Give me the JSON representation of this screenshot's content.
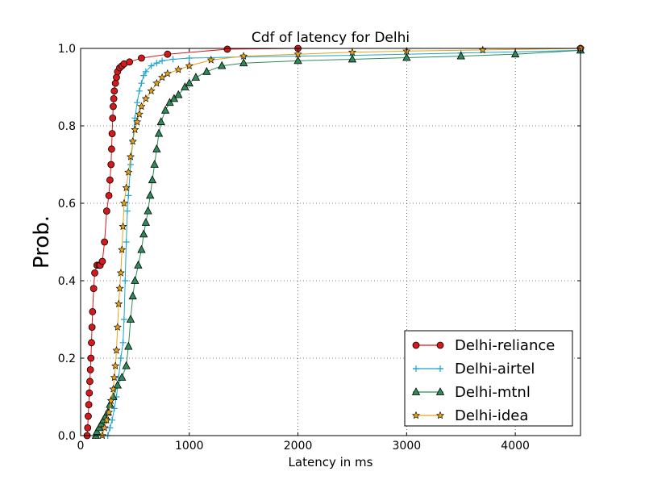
{
  "chart_data": {
    "type": "line",
    "title": "Cdf of latency for Delhi",
    "xlabel": "Latency in ms",
    "ylabel": "Prob.",
    "xlim": [
      0,
      4600
    ],
    "ylim": [
      0,
      1.0
    ],
    "xticks": [
      0,
      1000,
      2000,
      3000,
      4000
    ],
    "yticks": [
      0.0,
      0.2,
      0.4,
      0.6,
      0.8,
      1.0
    ],
    "xtick_labels": [
      "0",
      "1000",
      "2000",
      "3000",
      "4000"
    ],
    "ytick_labels": [
      "0.0",
      "0.2",
      "0.4",
      "0.6",
      "0.8",
      "1.0"
    ],
    "grid": true,
    "legend_position": "lower-right",
    "series": [
      {
        "name": "Delhi-reliance",
        "color": "#d7191c",
        "marker": "circle",
        "x": [
          60,
          65,
          70,
          75,
          80,
          85,
          90,
          95,
          100,
          105,
          110,
          120,
          130,
          150,
          170,
          180,
          200,
          220,
          240,
          260,
          270,
          280,
          285,
          290,
          295,
          300,
          305,
          310,
          320,
          330,
          340,
          360,
          380,
          400,
          450,
          560,
          800,
          1350,
          2000,
          4600
        ],
        "y": [
          0.0,
          0.02,
          0.05,
          0.08,
          0.11,
          0.14,
          0.17,
          0.2,
          0.24,
          0.28,
          0.32,
          0.38,
          0.42,
          0.44,
          0.44,
          0.44,
          0.45,
          0.5,
          0.58,
          0.62,
          0.66,
          0.7,
          0.74,
          0.78,
          0.82,
          0.85,
          0.87,
          0.89,
          0.91,
          0.925,
          0.94,
          0.95,
          0.955,
          0.96,
          0.965,
          0.975,
          0.985,
          0.998,
          1.0,
          1.0
        ]
      },
      {
        "name": "Delhi-airtel",
        "color": "#1aa5cf",
        "marker": "plus",
        "x": [
          250,
          270,
          290,
          310,
          330,
          350,
          370,
          390,
          400,
          410,
          420,
          430,
          440,
          460,
          480,
          500,
          520,
          540,
          560,
          580,
          600,
          650,
          700,
          750,
          850,
          1000,
          1500,
          2500,
          3500,
          4600
        ],
        "y": [
          0.0,
          0.02,
          0.04,
          0.07,
          0.1,
          0.15,
          0.2,
          0.24,
          0.3,
          0.4,
          0.5,
          0.58,
          0.62,
          0.7,
          0.76,
          0.82,
          0.86,
          0.89,
          0.91,
          0.93,
          0.94,
          0.955,
          0.962,
          0.968,
          0.972,
          0.975,
          0.978,
          0.982,
          0.988,
          0.995
        ]
      },
      {
        "name": "Delhi-mtnl",
        "color": "#2e8b57",
        "marker": "triangle",
        "x": [
          140,
          150,
          170,
          190,
          210,
          230,
          250,
          270,
          300,
          340,
          380,
          420,
          440,
          460,
          480,
          500,
          530,
          560,
          580,
          600,
          620,
          640,
          660,
          680,
          700,
          720,
          740,
          780,
          820,
          860,
          900,
          960,
          1000,
          1060,
          1160,
          1300,
          1500,
          2000,
          2500,
          3000,
          3500,
          4000,
          4600
        ],
        "y": [
          0.0,
          0.01,
          0.02,
          0.03,
          0.04,
          0.05,
          0.06,
          0.08,
          0.1,
          0.13,
          0.15,
          0.18,
          0.23,
          0.3,
          0.36,
          0.4,
          0.44,
          0.48,
          0.52,
          0.55,
          0.58,
          0.62,
          0.66,
          0.7,
          0.74,
          0.78,
          0.81,
          0.84,
          0.86,
          0.87,
          0.88,
          0.9,
          0.91,
          0.925,
          0.94,
          0.955,
          0.962,
          0.968,
          0.972,
          0.976,
          0.98,
          0.985,
          0.995
        ]
      },
      {
        "name": "Delhi-idea",
        "color": "#e8a317",
        "marker": "star",
        "x": [
          200,
          220,
          240,
          260,
          280,
          300,
          310,
          320,
          330,
          340,
          350,
          360,
          370,
          380,
          390,
          400,
          420,
          440,
          460,
          480,
          500,
          520,
          540,
          560,
          600,
          650,
          700,
          750,
          800,
          900,
          1000,
          1200,
          1500,
          2000,
          2500,
          3000,
          3700,
          4600
        ],
        "y": [
          0.0,
          0.02,
          0.04,
          0.06,
          0.09,
          0.12,
          0.15,
          0.18,
          0.22,
          0.28,
          0.34,
          0.38,
          0.42,
          0.48,
          0.54,
          0.6,
          0.64,
          0.68,
          0.72,
          0.76,
          0.79,
          0.81,
          0.83,
          0.85,
          0.87,
          0.89,
          0.91,
          0.925,
          0.935,
          0.945,
          0.955,
          0.97,
          0.98,
          0.985,
          0.99,
          0.993,
          0.996,
          1.0
        ]
      }
    ]
  }
}
